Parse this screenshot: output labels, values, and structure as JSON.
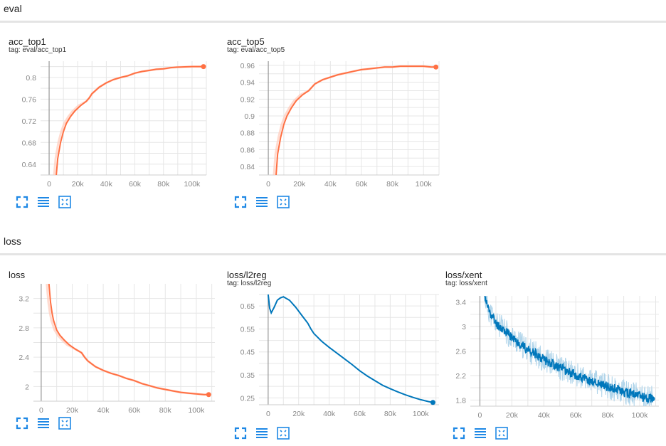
{
  "sections": [
    {
      "label": "eval"
    },
    {
      "label": "loss"
    }
  ],
  "toolbar_icons": [
    "fullscreen-icon",
    "list-icon",
    "fit-domain-icon"
  ],
  "colors": {
    "orange": "#ff7043",
    "orange_light": "#ffccbc",
    "blue": "#0077bb",
    "blue_light": "#a6cfe8"
  },
  "chart_data": [
    {
      "type": "line",
      "title": "acc_top1",
      "tag": "tag: eval/acc_top1",
      "xticks": [
        "0",
        "20k",
        "40k",
        "60k",
        "80k",
        "100k"
      ],
      "xtick_values": [
        0,
        20000,
        40000,
        60000,
        80000,
        100000
      ],
      "yticks": [
        "0.64",
        "0.68",
        "0.72",
        "0.76",
        "0.8"
      ],
      "ytick_values": [
        0.64,
        0.68,
        0.72,
        0.76,
        0.8
      ],
      "xlim": [
        -6000,
        110000
      ],
      "ylim": [
        0.62,
        0.83
      ],
      "color": "orange",
      "noisy": false,
      "x": [
        5000,
        6000,
        8000,
        10000,
        12000,
        15000,
        18000,
        22000,
        26000,
        28000,
        30000,
        35000,
        40000,
        45000,
        50000,
        55000,
        60000,
        65000,
        70000,
        75000,
        80000,
        85000,
        90000,
        95000,
        100000,
        105000,
        108000
      ],
      "y": [
        0.62,
        0.65,
        0.68,
        0.7,
        0.715,
        0.728,
        0.738,
        0.748,
        0.756,
        0.762,
        0.77,
        0.782,
        0.79,
        0.796,
        0.8,
        0.803,
        0.808,
        0.811,
        0.813,
        0.815,
        0.816,
        0.818,
        0.819,
        0.8195,
        0.82,
        0.82,
        0.82
      ]
    },
    {
      "type": "line",
      "title": "acc_top5",
      "tag": "tag: eval/acc_top5",
      "xticks": [
        "0",
        "20k",
        "40k",
        "60k",
        "80k",
        "100k"
      ],
      "xtick_values": [
        0,
        20000,
        40000,
        60000,
        80000,
        100000
      ],
      "yticks": [
        "0.84",
        "0.86",
        "0.88",
        "0.9",
        "0.92",
        "0.94",
        "0.96"
      ],
      "ytick_values": [
        0.84,
        0.86,
        0.88,
        0.9,
        0.92,
        0.94,
        0.96
      ],
      "xlim": [
        -6000,
        110000
      ],
      "ylim": [
        0.83,
        0.965
      ],
      "color": "orange",
      "noisy": false,
      "x": [
        5000,
        6000,
        8000,
        10000,
        12000,
        15000,
        18000,
        22000,
        26000,
        30000,
        35000,
        40000,
        45000,
        50000,
        55000,
        60000,
        65000,
        70000,
        75000,
        80000,
        85000,
        90000,
        95000,
        100000,
        105000,
        108000
      ],
      "y": [
        0.83,
        0.855,
        0.875,
        0.89,
        0.9,
        0.91,
        0.918,
        0.925,
        0.93,
        0.938,
        0.943,
        0.946,
        0.949,
        0.951,
        0.953,
        0.955,
        0.956,
        0.957,
        0.958,
        0.958,
        0.959,
        0.959,
        0.959,
        0.959,
        0.958,
        0.958
      ]
    },
    {
      "type": "line",
      "title": "loss",
      "tag": "",
      "xticks": [
        "0",
        "20k",
        "40k",
        "60k",
        "80k",
        "100k"
      ],
      "xtick_values": [
        0,
        20000,
        40000,
        60000,
        80000,
        100000
      ],
      "yticks": [
        "2",
        "2.4",
        "2.8",
        "3.2"
      ],
      "ytick_values": [
        2,
        2.4,
        2.8,
        3.2
      ],
      "xlim": [
        -5000,
        112000
      ],
      "ylim": [
        1.8,
        3.4
      ],
      "color": "orange",
      "noisy": false,
      "x": [
        5000,
        6000,
        7000,
        8000,
        10000,
        12000,
        15000,
        18000,
        22000,
        26000,
        28000,
        30000,
        35000,
        40000,
        45000,
        50000,
        55000,
        60000,
        65000,
        70000,
        75000,
        80000,
        85000,
        90000,
        95000,
        100000,
        105000,
        108000
      ],
      "y": [
        3.4,
        3.15,
        3.0,
        2.9,
        2.77,
        2.7,
        2.63,
        2.57,
        2.51,
        2.46,
        2.4,
        2.35,
        2.27,
        2.22,
        2.18,
        2.15,
        2.11,
        2.08,
        2.04,
        2.01,
        1.98,
        1.96,
        1.94,
        1.92,
        1.91,
        1.9,
        1.89,
        1.89
      ]
    },
    {
      "type": "line",
      "title": "loss/l2reg",
      "tag": "tag: loss/l2reg",
      "xticks": [
        "0",
        "20k",
        "40k",
        "60k",
        "80k",
        "100k"
      ],
      "xtick_values": [
        0,
        20000,
        40000,
        60000,
        80000,
        100000
      ],
      "yticks": [
        "0.25",
        "0.35",
        "0.45",
        "0.55",
        "0.65"
      ],
      "ytick_values": [
        0.25,
        0.35,
        0.45,
        0.55,
        0.65
      ],
      "xlim": [
        -6000,
        112000
      ],
      "ylim": [
        0.22,
        0.7
      ],
      "color": "blue",
      "noisy": false,
      "x": [
        0,
        1000,
        2000,
        4000,
        6000,
        8000,
        10000,
        14000,
        18000,
        22000,
        26000,
        28000,
        30000,
        35000,
        40000,
        45000,
        50000,
        55000,
        60000,
        65000,
        70000,
        75000,
        80000,
        85000,
        90000,
        95000,
        100000,
        105000,
        108000
      ],
      "y": [
        0.7,
        0.64,
        0.62,
        0.645,
        0.675,
        0.685,
        0.69,
        0.675,
        0.645,
        0.61,
        0.575,
        0.55,
        0.53,
        0.497,
        0.47,
        0.445,
        0.42,
        0.395,
        0.368,
        0.345,
        0.325,
        0.305,
        0.29,
        0.276,
        0.263,
        0.252,
        0.242,
        0.234,
        0.23
      ]
    },
    {
      "type": "line",
      "title": "loss/xent",
      "tag": "tag: loss/xent",
      "xticks": [
        "0",
        "20k",
        "40k",
        "60k",
        "80k",
        "100k"
      ],
      "xtick_values": [
        0,
        20000,
        40000,
        60000,
        80000,
        100000
      ],
      "yticks": [
        "1.8",
        "2.2",
        "2.6",
        "3",
        "3.4"
      ],
      "ytick_values": [
        1.8,
        2.2,
        2.6,
        3,
        3.4
      ],
      "xlim": [
        -6000,
        112000
      ],
      "ylim": [
        1.7,
        3.5
      ],
      "color": "blue",
      "noisy": true,
      "x": [
        3000,
        5000,
        8000,
        10000,
        15000,
        20000,
        25000,
        30000,
        35000,
        40000,
        45000,
        50000,
        55000,
        60000,
        65000,
        70000,
        75000,
        80000,
        85000,
        90000,
        95000,
        100000,
        105000,
        108000
      ],
      "y": [
        3.5,
        3.3,
        3.15,
        3.05,
        2.95,
        2.82,
        2.72,
        2.62,
        2.55,
        2.47,
        2.4,
        2.33,
        2.27,
        2.21,
        2.15,
        2.1,
        2.07,
        2.02,
        1.98,
        1.93,
        1.9,
        1.87,
        1.84,
        1.82
      ]
    }
  ]
}
